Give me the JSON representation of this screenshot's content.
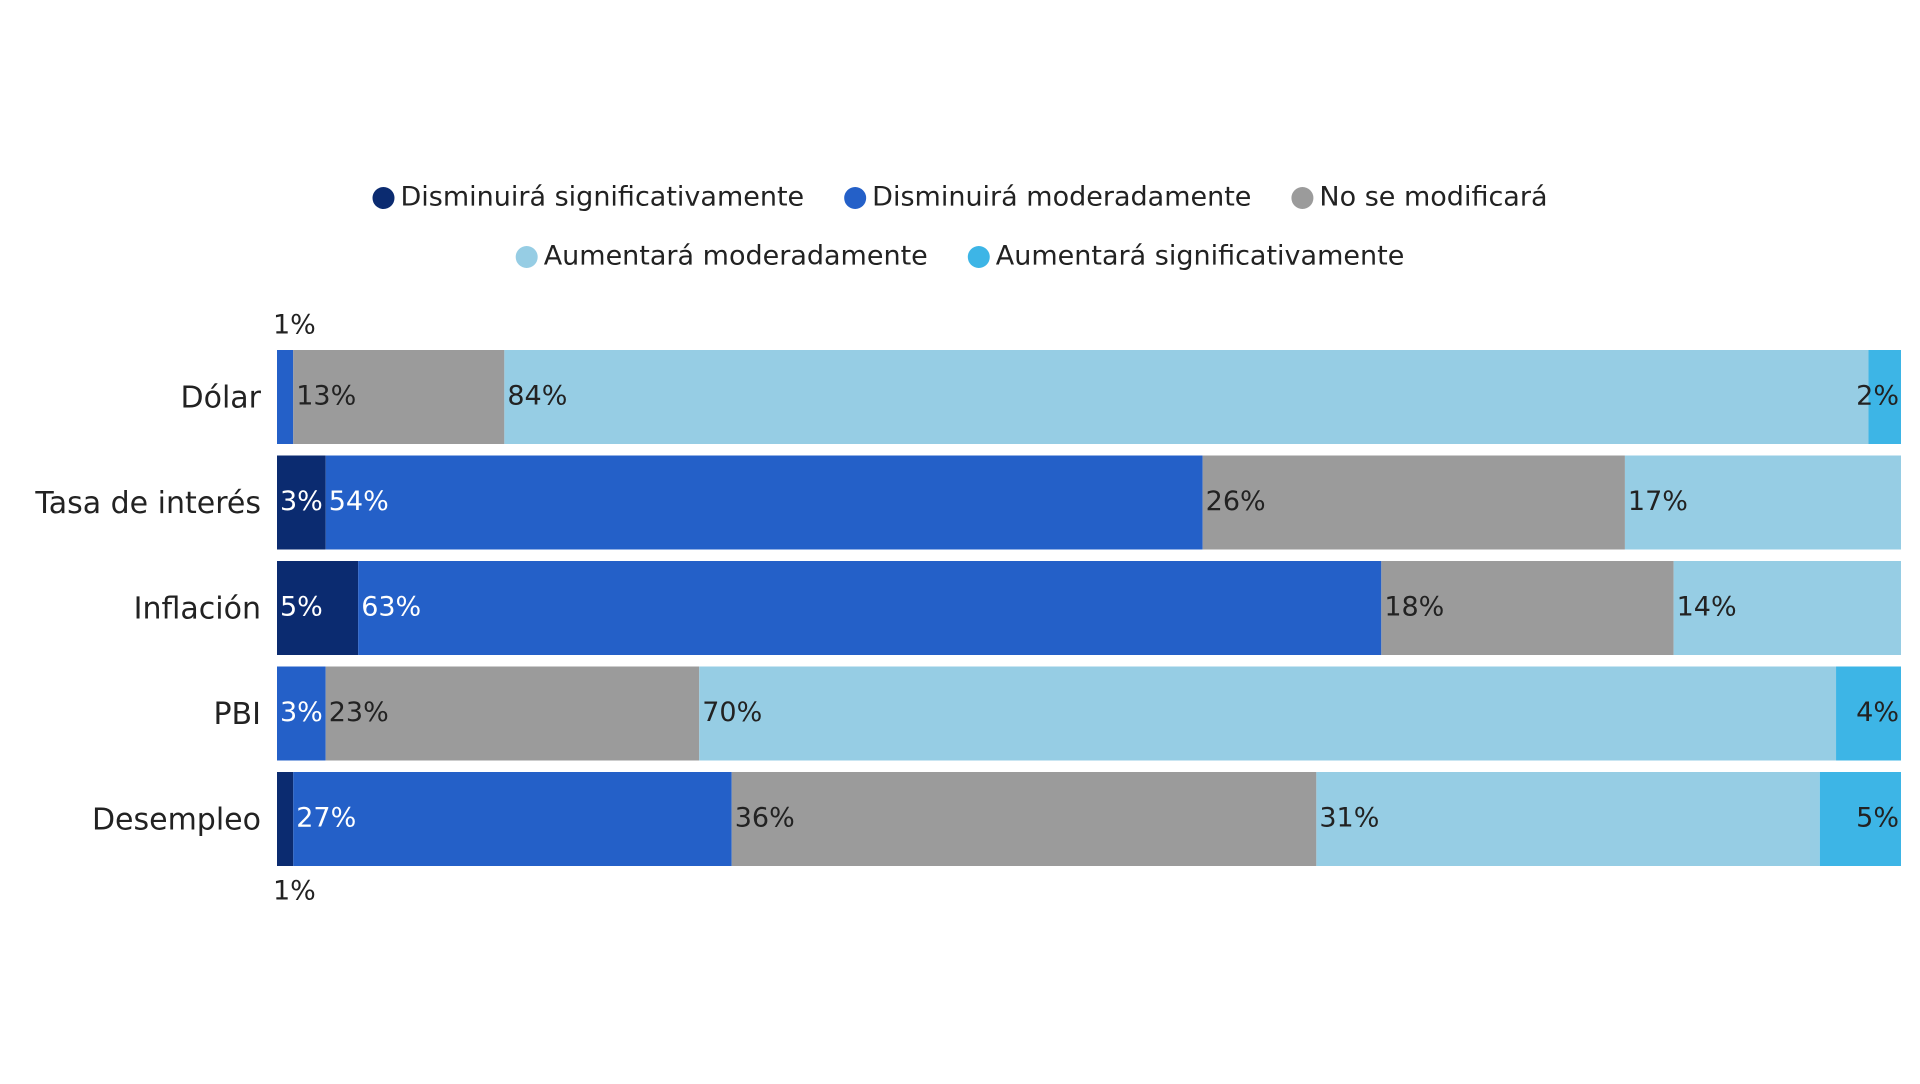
{
  "chart_data": {
    "type": "stacked-bar-horizontal",
    "categories": [
      "Dólar",
      "Tasa de interés",
      "Inflación",
      "PBI",
      "Desempleo"
    ],
    "xlim": [
      0,
      100
    ],
    "series": [
      {
        "name": "Disminuirá significativamente",
        "color": "#0b2b70",
        "values": [
          null,
          3,
          5,
          null,
          1
        ],
        "value_labels": [
          null,
          "3%",
          "5%",
          null,
          "1%"
        ]
      },
      {
        "name": "Disminuirá moderadamente",
        "color": "#2460c8",
        "values": [
          1,
          54,
          63,
          3,
          27
        ],
        "value_labels": [
          "1%",
          "54%",
          "63%",
          "3%",
          "27%"
        ]
      },
      {
        "name": "No se modificará",
        "color": "#9b9b9b",
        "values": [
          13,
          26,
          18,
          23,
          36
        ],
        "value_labels": [
          "13%",
          "26%",
          "18%",
          "23%",
          "36%"
        ]
      },
      {
        "name": "Aumentará moderadamente",
        "color": "#96cde4",
        "values": [
          84,
          17,
          14,
          70,
          31
        ],
        "value_labels": [
          "84%",
          "17%",
          "14%",
          "70%",
          "31%"
        ]
      },
      {
        "name": "Aumentará significativamente",
        "color": "#3db5e6",
        "values": [
          2,
          null,
          null,
          4,
          5
        ],
        "value_labels": [
          "2%",
          null,
          null,
          "4%",
          "5%"
        ]
      }
    ]
  }
}
